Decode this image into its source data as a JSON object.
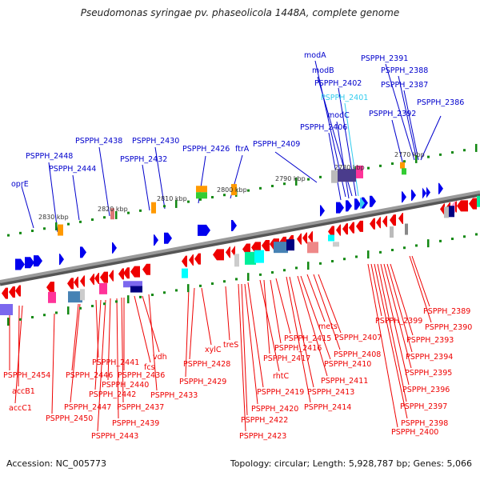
{
  "title": "Pseudomonas syringae pv. phaseolicola 1448A, complete genome",
  "footer": {
    "accession": "Accession: NC_005773",
    "summary": "Topology: circular; Length: 5,928,787 bp; Genes: 5,066"
  },
  "colors": {
    "forward_label": "#0000cc",
    "forward_label_highlight": "#33ccee",
    "reverse_label": "#ee0000",
    "axis": "#808080",
    "tick": "#118811"
  },
  "scale_labels": [
    "2830 kbp",
    "2820 kbp",
    "2810 kbp",
    "2800 kbp",
    "2790 kbp",
    "2780 kbp",
    "2770 kbp"
  ],
  "forward_genes": [
    {
      "name": "oprE"
    },
    {
      "name": "PSPPH_2448"
    },
    {
      "name": "PSPPH_2444"
    },
    {
      "name": "PSPPH_2438"
    },
    {
      "name": "PSPPH_2432"
    },
    {
      "name": "PSPPH_2430"
    },
    {
      "name": "PSPPH_2426"
    },
    {
      "name": "ftrA"
    },
    {
      "name": "PSPPH_2409"
    },
    {
      "name": "PSPPH_2406"
    },
    {
      "name": "modC"
    },
    {
      "name": "PSPPH_2401",
      "highlight": true
    },
    {
      "name": "PSPPH_2402"
    },
    {
      "name": "modB"
    },
    {
      "name": "modA"
    },
    {
      "name": "PSPPH_2392"
    },
    {
      "name": "PSPPH_2391"
    },
    {
      "name": "PSPPH_2388"
    },
    {
      "name": "PSPPH_2387"
    },
    {
      "name": "PSPPH_2386"
    }
  ],
  "reverse_genes": [
    {
      "name": "PSPPH_2454"
    },
    {
      "name": "accB1"
    },
    {
      "name": "accC1"
    },
    {
      "name": "PSPPH_2450"
    },
    {
      "name": "PSPPH_2447"
    },
    {
      "name": "PSPPH_2446"
    },
    {
      "name": "PSPPH_2441"
    },
    {
      "name": "PSPPH_2442"
    },
    {
      "name": "PSPPH_2443"
    },
    {
      "name": "PSPPH_2440"
    },
    {
      "name": "PSPPH_2439"
    },
    {
      "name": "PSPPH_2437"
    },
    {
      "name": "PSPPH_2436"
    },
    {
      "name": "fcs"
    },
    {
      "name": "vdh"
    },
    {
      "name": "PSPPH_2433"
    },
    {
      "name": "PSPPH_2429"
    },
    {
      "name": "PSPPH_2428"
    },
    {
      "name": "xylC"
    },
    {
      "name": "treS"
    },
    {
      "name": "PSPPH_2423"
    },
    {
      "name": "PSPPH_2422"
    },
    {
      "name": "PSPPH_2420"
    },
    {
      "name": "PSPPH_2419"
    },
    {
      "name": "rhtC"
    },
    {
      "name": "PSPPH_2417"
    },
    {
      "name": "PSPPH_2416"
    },
    {
      "name": "PSPPH_2415"
    },
    {
      "name": "PSPPH_2414"
    },
    {
      "name": "PSPPH_2413"
    },
    {
      "name": "PSPPH_2411"
    },
    {
      "name": "PSPPH_2410"
    },
    {
      "name": "mets"
    },
    {
      "name": "PSPPH_2408"
    },
    {
      "name": "PSPPH_2407"
    },
    {
      "name": "PSPPH_2400"
    },
    {
      "name": "PSPPH_2399"
    },
    {
      "name": "PSPPH_2398"
    },
    {
      "name": "PSPPH_2397"
    },
    {
      "name": "PSPPH_2396"
    },
    {
      "name": "PSPPH_2395"
    },
    {
      "name": "PSPPH_2394"
    },
    {
      "name": "PSPPH_2393"
    },
    {
      "name": "PSPPH_2390"
    },
    {
      "name": "PSPPH_2389"
    }
  ]
}
